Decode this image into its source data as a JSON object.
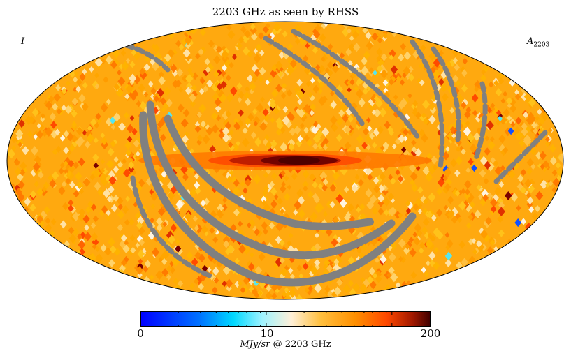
{
  "title": "2203 GHz as seen by RHSS",
  "corner_left": "I",
  "corner_right": {
    "symbol": "A",
    "subscript": "2203"
  },
  "colorbar": {
    "min_label": "0",
    "mid_label": "10",
    "max_label": "200",
    "unit": "MJy/sr",
    "unit_suffix": "@ 2203 GHz",
    "range": [
      0,
      200
    ],
    "scale": "log"
  },
  "colors": {
    "masked": "#808080",
    "background_orange": "#ffa500",
    "plane_dark": "#6a0000",
    "cmap": [
      "#0000ff",
      "#0080ff",
      "#00e5ff",
      "#fff0d8",
      "#ffb400",
      "#ff4800",
      "#501000"
    ]
  },
  "projection": "mollweide"
}
